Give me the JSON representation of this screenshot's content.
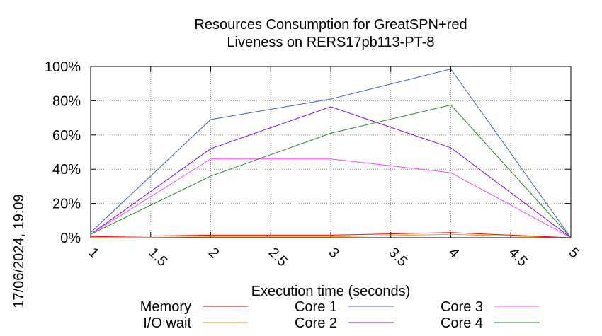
{
  "chart_data": {
    "type": "line",
    "title_line1": "Resources Consumption for GreatSPN+red",
    "title_line2": "Liveness on RERS17pb113-PT-8",
    "xlabel": "Execution time (seconds)",
    "ylabel": "",
    "side_label": "17/06/2024, 19:09",
    "xlim": [
      1,
      5
    ],
    "ylim": [
      0,
      100
    ],
    "x_ticks": [
      "1",
      "1.5",
      "2",
      "2.5",
      "3",
      "3.5",
      "4",
      "4.5",
      "5"
    ],
    "y_ticks": [
      "0%",
      "20%",
      "40%",
      "60%",
      "80%",
      "100%"
    ],
    "grid": true,
    "legend_position": "bottom",
    "x": [
      1,
      2,
      3,
      4,
      5
    ],
    "series": [
      {
        "name": "Memory",
        "color": "#ff0000",
        "values": [
          0.5,
          1.5,
          1.5,
          3,
          0
        ]
      },
      {
        "name": "I/O wait",
        "color": "#ff9900",
        "values": [
          0,
          0.5,
          0.5,
          2,
          0
        ]
      },
      {
        "name": "Core 1",
        "color": "#3366cc",
        "values": [
          3,
          69,
          81,
          98.5,
          0
        ]
      },
      {
        "name": "Core 2",
        "color": "#8800ee",
        "values": [
          2,
          52,
          76.5,
          52.5,
          0
        ]
      },
      {
        "name": "Core 3",
        "color": "#ff44ff",
        "values": [
          2,
          46,
          46,
          38,
          0
        ]
      },
      {
        "name": "Core 4",
        "color": "#228b22",
        "values": [
          2,
          36,
          61,
          77.5,
          0
        ]
      }
    ]
  }
}
